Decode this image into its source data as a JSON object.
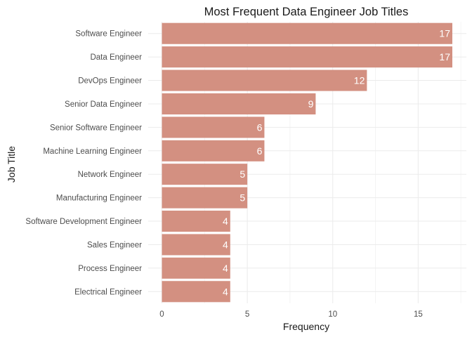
{
  "chart_data": {
    "type": "bar",
    "orientation": "horizontal",
    "title": "Most Frequent Data Engineer Job Titles",
    "xlabel": "Frequency",
    "ylabel": "Job Title",
    "categories": [
      "Software Engineer",
      "Data Engineer",
      "DevOps Engineer",
      "Senior Data Engineer",
      "Senior Software Engineer",
      "Machine Learning Engineer",
      "Network Engineer",
      "Manufacturing Engineer",
      "Software Development Engineer",
      "Sales Engineer",
      "Process Engineer",
      "Electrical Engineer"
    ],
    "values": [
      17,
      17,
      12,
      9,
      6,
      6,
      5,
      5,
      4,
      4,
      4,
      4
    ],
    "data_labels": [
      "17",
      "17",
      "12",
      "9",
      "6",
      "6",
      "5",
      "5",
      "4",
      "4",
      "4",
      "4"
    ],
    "xlim": [
      0,
      17.6
    ],
    "xticks": [
      0,
      5,
      10,
      15
    ],
    "xtick_labels": [
      "0",
      "5",
      "10",
      "15"
    ],
    "grid": true,
    "legend": "none",
    "bar_color": "#d39081"
  }
}
